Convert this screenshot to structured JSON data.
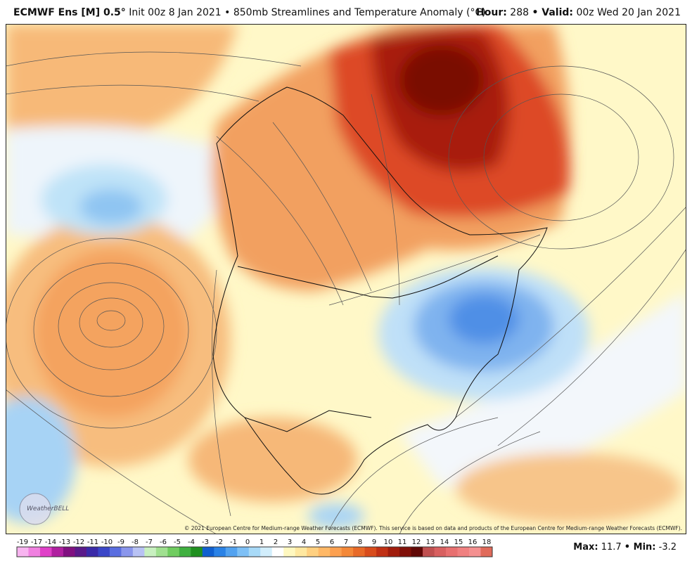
{
  "header": {
    "model": "ECMWF Ens [M] 0.5°",
    "init": "Init 00z 8 Jan 2021 • 850mb Streamlines and Temperature Anomaly (°C)",
    "hour_label": "Hour:",
    "hour": "288",
    "valid_label": "• Valid:",
    "valid": "00z Wed 20 Jan 2021"
  },
  "map": {
    "copyright": "© 2021 European Centre for Medium-range Weather Forecasts (ECMWF). This service is based on data and products of the European Centre for Medium-range Weather Forecasts (ECMWF).",
    "logo": "WeatherBELL"
  },
  "colorbar": {
    "labels": [
      -19,
      -17,
      -14,
      -13,
      -12,
      -11,
      -10,
      -9,
      -8,
      -7,
      -6,
      -5,
      -4,
      -3,
      -2,
      -1,
      0,
      1,
      2,
      3,
      4,
      5,
      6,
      7,
      8,
      9,
      10,
      11,
      12,
      13,
      14,
      15,
      16,
      18
    ]
  },
  "footer": {
    "max_label": "Max:",
    "max": 11.7,
    "min_label": "• Min:",
    "min": -3.2
  }
}
